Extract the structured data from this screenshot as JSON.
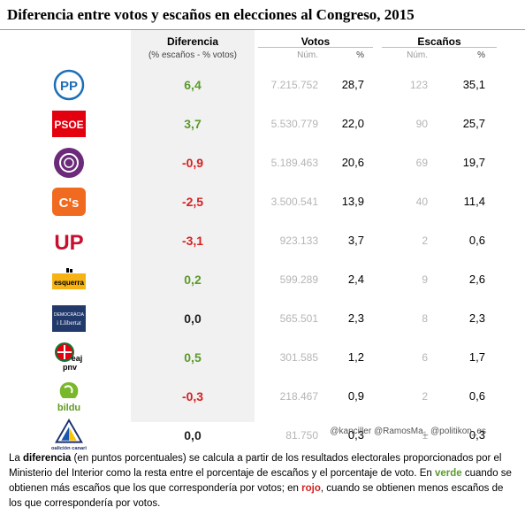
{
  "title": "Diferencia entre votos y escaños en elecciones al Congreso, 2015",
  "headers": {
    "diff": "Diferencia",
    "diff_sub": "(% escaños - % votos)",
    "votes": "Votos",
    "seats": "Escaños",
    "num": "Núm.",
    "pct": "%"
  },
  "colors": {
    "positive": "#5a9a2c",
    "negative": "#d42222",
    "neutral": "#222222"
  },
  "chart_data": {
    "type": "table",
    "columns": [
      "Diferencia",
      "Votos Núm.",
      "Votos %",
      "Escaños Núm.",
      "Escaños %"
    ],
    "rows": [
      {
        "party_logo": "PP",
        "diff": "6,4",
        "sign": "positive",
        "votes": "7.215.752",
        "votes_pct": "28,7",
        "seats": "123",
        "seats_pct": "35,1"
      },
      {
        "party_logo": "PSOE",
        "diff": "3,7",
        "sign": "positive",
        "votes": "5.530.779",
        "votes_pct": "22,0",
        "seats": "90",
        "seats_pct": "25,7"
      },
      {
        "party_logo": "podemos-logo",
        "diff": "-0,9",
        "sign": "negative",
        "votes": "5.189.463",
        "votes_pct": "20,6",
        "seats": "69",
        "seats_pct": "19,7"
      },
      {
        "party_logo": "C's",
        "diff": "-2,5",
        "sign": "negative",
        "votes": "3.500.541",
        "votes_pct": "13,9",
        "seats": "40",
        "seats_pct": "11,4"
      },
      {
        "party_logo": "UP",
        "diff": "-3,1",
        "sign": "negative",
        "votes": "923.133",
        "votes_pct": "3,7",
        "seats": "2",
        "seats_pct": "0,6"
      },
      {
        "party_logo": "esquerra",
        "diff": "0,2",
        "sign": "positive",
        "votes": "599.289",
        "votes_pct": "2,4",
        "seats": "9",
        "seats_pct": "2,6"
      },
      {
        "party_logo": "DEMOCRÀCIA i Llibertat",
        "diff": "0,0",
        "sign": "neutral",
        "votes": "565.501",
        "votes_pct": "2,3",
        "seats": "8",
        "seats_pct": "2,3"
      },
      {
        "party_logo": "eaj pnv",
        "diff": "0,5",
        "sign": "positive",
        "votes": "301.585",
        "votes_pct": "1,2",
        "seats": "6",
        "seats_pct": "1,7"
      },
      {
        "party_logo": "bildu",
        "diff": "-0,3",
        "sign": "negative",
        "votes": "218.467",
        "votes_pct": "0,9",
        "seats": "2",
        "seats_pct": "0,6"
      },
      {
        "party_logo": "coalición canaria",
        "diff": "0,0",
        "sign": "neutral",
        "votes": "81.750",
        "votes_pct": "0,3",
        "seats": "1",
        "seats_pct": "0,3"
      }
    ]
  },
  "credit": "@kanciller @RamosMa_ @politikon_es",
  "note": {
    "p1": "La ",
    "b1": "diferencia",
    "p2": " (en puntos porcentuales) se calcula a partir de los resultados electorales proporcionados por el Ministerio del Interior como la resta entre el porcentaje de escaños y el porcentaje de voto. En ",
    "green": "verde",
    "p3": " cuando se obtienen más escaños que los que correspondería por votos; en ",
    "red": "rojo",
    "p4": ", cuando se obtienen menos escaños de los que correspondería por votos."
  }
}
